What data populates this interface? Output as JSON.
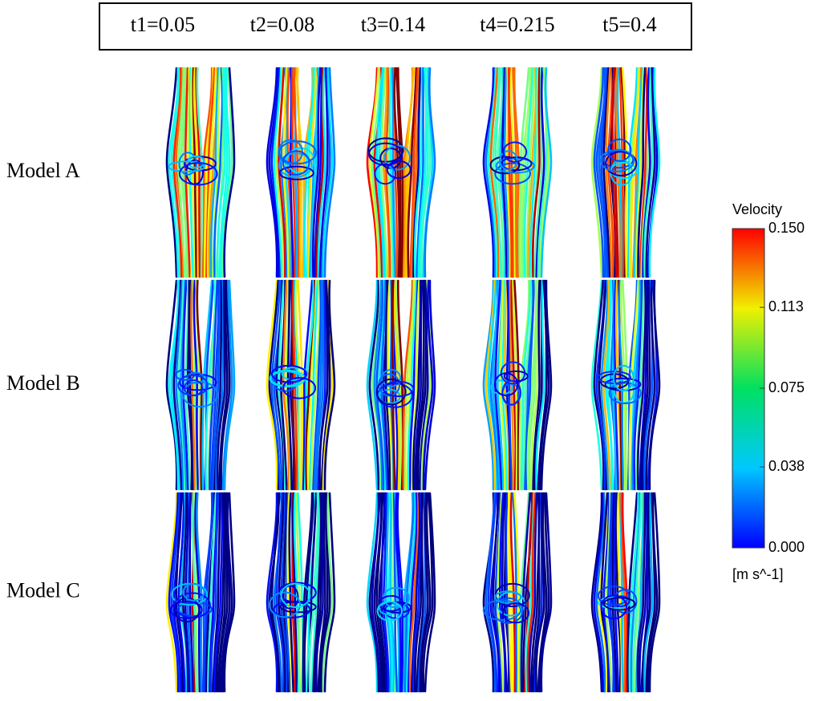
{
  "header": {
    "times": [
      "t1=0.05",
      "t2=0.08",
      "t3=0.14",
      "t4=0.215",
      "t5=0.4"
    ]
  },
  "rows": [
    "Model A",
    "Model B",
    "Model C"
  ],
  "colorbar": {
    "title": "Velocity",
    "unit": "[m s^-1]",
    "range": [
      0,
      0.15
    ],
    "ticks": [
      {
        "value": 0.15,
        "label": "0.150"
      },
      {
        "value": 0.113,
        "label": "0.113"
      },
      {
        "value": 0.075,
        "label": "0.075"
      },
      {
        "value": 0.038,
        "label": "0.038"
      },
      {
        "value": 0,
        "label": "0.000"
      }
    ]
  }
}
